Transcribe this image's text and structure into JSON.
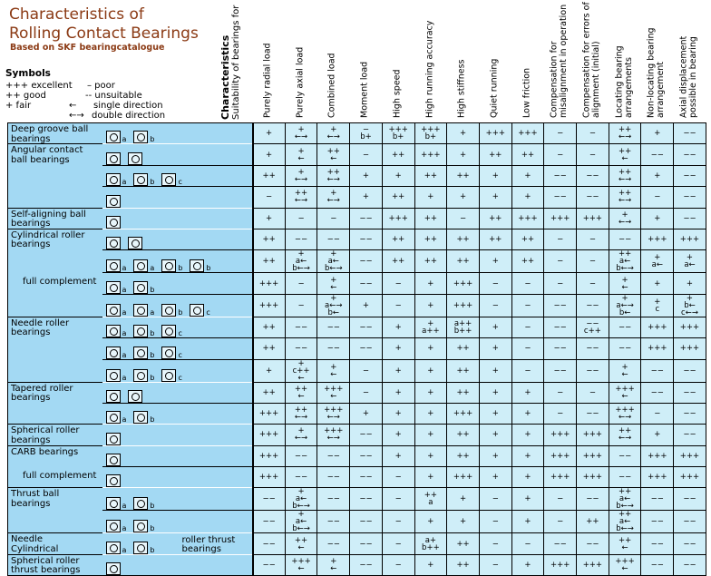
{
  "title": "Characteristics of\nRolling Contact Bearings",
  "subtitle": "Based on SKF bearingcatalogue",
  "symbols": {
    "heading": "Symbols",
    "excellent": "+++ excellent",
    "good": "++ good",
    "fair": "+ fair",
    "poor": "– poor",
    "unsuitable": "-- unsuitable",
    "single_symbol": "←",
    "single": "single direction",
    "double_symbol": "←→",
    "double": "double direction"
  },
  "characteristics_header": {
    "title": "Characteristics",
    "subtitle": "Suitability of bearings for"
  },
  "columns": [
    "Purely radial load",
    "Purely axial load",
    "Combined load",
    "Moment load",
    "High speed",
    "High running accuracy",
    "High stiffness",
    "Quiet running",
    "Low friction",
    "Compensation for misalignment in operation",
    "Compensation for errors of alignment (initial)",
    "Locating bearing arrangements",
    "Non-locating bearing arrangement",
    "Axial displacement possible in bearing"
  ],
  "rows": [
    {
      "label": "Deep groove ball\nbearings",
      "start": true,
      "icons": [
        "a",
        "b"
      ],
      "values": [
        "+",
        "+\n←→",
        "+\n←→",
        "−\nb+",
        "+++\nb+",
        "+++\nb+",
        "+",
        "+++",
        "+++",
        "−",
        "−",
        "++\n←→",
        "+",
        "−−"
      ]
    },
    {
      "label": "Angular contact\nball bearings",
      "start": true,
      "icons": [
        "",
        ""
      ],
      "values": [
        "+",
        "+\n←",
        "++\n←",
        "−",
        "++",
        "+++",
        "+",
        "++",
        "++",
        "−",
        "−",
        "++\n←",
        "−−",
        "−−"
      ]
    },
    {
      "icons": [
        "a",
        "b",
        "c"
      ],
      "values": [
        "++",
        "+\n←→",
        "++\n←→",
        "+",
        "+",
        "++",
        "++",
        "+",
        "+",
        "−−",
        "−−",
        "++\n←→",
        "+",
        "−−"
      ]
    },
    {
      "icons": [
        ""
      ],
      "values": [
        "−",
        "++\n←→",
        "+\n←→",
        "+",
        "++",
        "+",
        "+",
        "+",
        "+",
        "−−",
        "−−",
        "++\n←→",
        "−",
        "−−"
      ]
    },
    {
      "label": "Self-aligning ball\nbearings",
      "start": true,
      "icons": [
        ""
      ],
      "values": [
        "+",
        "−",
        "−",
        "−−",
        "+++",
        "++",
        "−",
        "++",
        "+++",
        "+++",
        "+++",
        "+\n←→",
        "+",
        "−−"
      ]
    },
    {
      "label": "Cylindrical roller\nbearings",
      "start": true,
      "icons": [
        "",
        ""
      ],
      "values": [
        "++",
        "−−",
        "−−",
        "−−",
        "++",
        "++",
        "++",
        "++",
        "++",
        "−",
        "−",
        "−−",
        "+++",
        "+++"
      ]
    },
    {
      "icons": [
        "a",
        "a",
        "b",
        "b"
      ],
      "values": [
        "++",
        "+\na←\nb←→",
        "+\na←\nb←→",
        "−−",
        "++",
        "++",
        "++",
        "+",
        "++",
        "−",
        "−",
        "++\na←\nb←→",
        "+\na←",
        "+\na←"
      ]
    },
    {
      "sublabel": "full complement",
      "icons": [
        "a",
        "b"
      ],
      "values": [
        "+++",
        "−",
        "+\n←",
        "−−",
        "−",
        "+",
        "+++",
        "−",
        "−",
        "−",
        "−",
        "+\n←",
        "+",
        "+"
      ]
    },
    {
      "icons": [
        "a",
        "a",
        "b",
        "c"
      ],
      "values": [
        "+++",
        "−",
        "+\na←→\nb←",
        "+",
        "−",
        "+",
        "+++",
        "−",
        "−",
        "−−",
        "−−",
        "+\na←→\nb←",
        "+\nc",
        "+\nb←\nc←→"
      ]
    },
    {
      "label": "Needle roller\nbearings",
      "start": true,
      "icons": [
        "a",
        "b",
        "c"
      ],
      "values": [
        "++",
        "−−",
        "−−",
        "−−",
        "+",
        "+\na++",
        "a++\nb++",
        "+",
        "−",
        "−−",
        "−−\nc++",
        "−−",
        "+++",
        "+++"
      ]
    },
    {
      "icons": [
        "a",
        "b",
        "c"
      ],
      "values": [
        "++",
        "−−",
        "−−",
        "−−",
        "+",
        "+",
        "++",
        "+",
        "−",
        "−−",
        "−−",
        "−−",
        "+++",
        "+++"
      ]
    },
    {
      "icons": [
        "a",
        "b",
        "c"
      ],
      "values": [
        "+",
        "+\nc++\n←",
        "+\n←",
        "−",
        "+",
        "+",
        "++",
        "+",
        "−",
        "−−",
        "−−",
        "+\n←",
        "−−",
        "−−"
      ]
    },
    {
      "label": "Tapered roller\nbearings",
      "start": true,
      "icons": [
        "",
        ""
      ],
      "values": [
        "++",
        "++\n←",
        "+++\n←",
        "−",
        "+",
        "+",
        "++",
        "+",
        "+",
        "−",
        "−",
        "+++\n←",
        "−−",
        "−−"
      ]
    },
    {
      "icons": [
        "a",
        "b"
      ],
      "values": [
        "+++",
        "++\n←→",
        "+++\n←→",
        "+",
        "+",
        "+",
        "+++",
        "+",
        "+",
        "−",
        "−−",
        "+++\n←→",
        "−",
        "−−"
      ]
    },
    {
      "label": "Spherical roller\nbearings",
      "start": true,
      "icons": [
        ""
      ],
      "values": [
        "+++",
        "+\n←→",
        "+++\n←→",
        "−−",
        "+",
        "+",
        "++",
        "+",
        "+",
        "+++",
        "+++",
        "++\n←→",
        "+",
        "−−"
      ]
    },
    {
      "label": "CARB bearings",
      "start": true,
      "icons": [
        ""
      ],
      "values": [
        "+++",
        "−−",
        "−−",
        "−−",
        "+",
        "+",
        "++",
        "+",
        "+",
        "+++",
        "+++",
        "−−",
        "+++",
        "+++"
      ]
    },
    {
      "sublabel": "full complement",
      "icons": [
        ""
      ],
      "values": [
        "+++",
        "−−",
        "−−",
        "−−",
        "−",
        "+",
        "+++",
        "+",
        "+",
        "+++",
        "+++",
        "−−",
        "+++",
        "+++"
      ]
    },
    {
      "label": "Thrust ball\nbearings",
      "start": true,
      "icons": [
        "a",
        "b"
      ],
      "values": [
        "−−",
        "+\na←\nb←→",
        "−−",
        "−−",
        "−",
        "++\na",
        "+",
        "−",
        "+",
        "−",
        "−−",
        "++\na←\nb←→",
        "−−",
        "−−"
      ]
    },
    {
      "icons": [
        "a",
        "b"
      ],
      "values": [
        "−−",
        "+\na←\nb←→",
        "−−",
        "−−",
        "−",
        "+",
        "+",
        "−",
        "+",
        "−",
        "++",
        "++\na←\nb←→",
        "−−",
        "−−"
      ]
    },
    {
      "label": "Needle\nCylindrical",
      "start": true,
      "note": "roller thrust\nbearings",
      "icons": [
        "a",
        "b"
      ],
      "values": [
        "−−",
        "++\n←",
        "−−",
        "−−",
        "−",
        "a+\nb++",
        "++",
        "−",
        "−",
        "−−",
        "−−",
        "++\n←",
        "−−",
        "−−"
      ]
    },
    {
      "label": "Spherical roller\nthrust bearings",
      "start": true,
      "icons": [
        ""
      ],
      "values": [
        "−−",
        "+++\n←",
        "+\n←",
        "−−",
        "−",
        "+",
        "++",
        "−",
        "+",
        "+++",
        "+++",
        "+++\n←",
        "−−",
        "−−"
      ]
    }
  ],
  "colors": {
    "title": "#8b3a14",
    "label_bg": "#a3d9f3",
    "cell_bg": "#cfeef8"
  }
}
